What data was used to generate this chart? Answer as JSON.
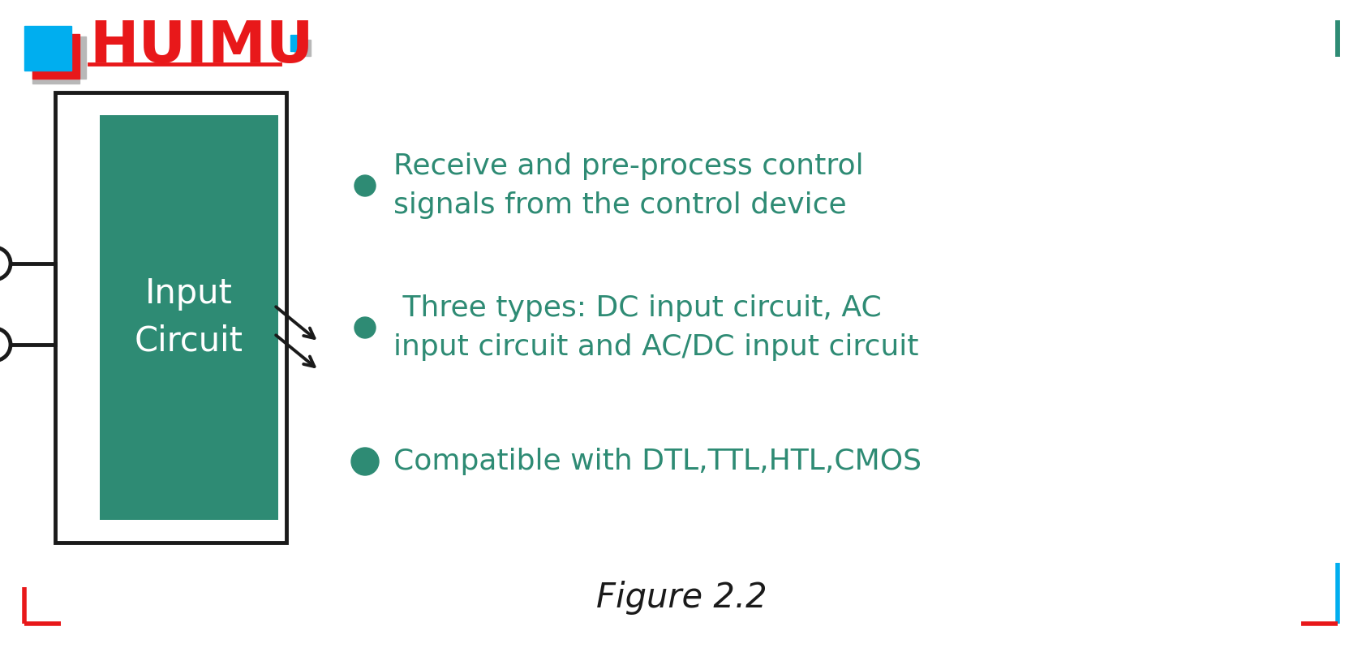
{
  "fig_width": 16.79,
  "fig_height": 7.99,
  "bg_color": "#ffffff",
  "teal_color": "#2e8b74",
  "black_color": "#1a1a1a",
  "red_color": "#e8181a",
  "blue_color": "#00aeef",
  "gray_color": "#b8b8b8",
  "bullet_color": "#2e8b74",
  "text_color": "#2e8b74",
  "figure_label": "Figure 2.2",
  "bullet_points": [
    "Receive and pre-process control\nsignals from the control device",
    " Three types: DC input circuit, AC\ninput circuit and AC/DC input circuit",
    "Compatible with DTL,TTL,HTL,CMOS"
  ],
  "circuit_label": "Input\nCircuit",
  "logo_text": "HUIMU",
  "corner_color_tl": "#00aeef",
  "corner_color_tr": "#2e8b74",
  "corner_color_bl": "#e8181a",
  "corner_color_br_v": "#00aeef",
  "corner_color_br_h": "#e8181a"
}
